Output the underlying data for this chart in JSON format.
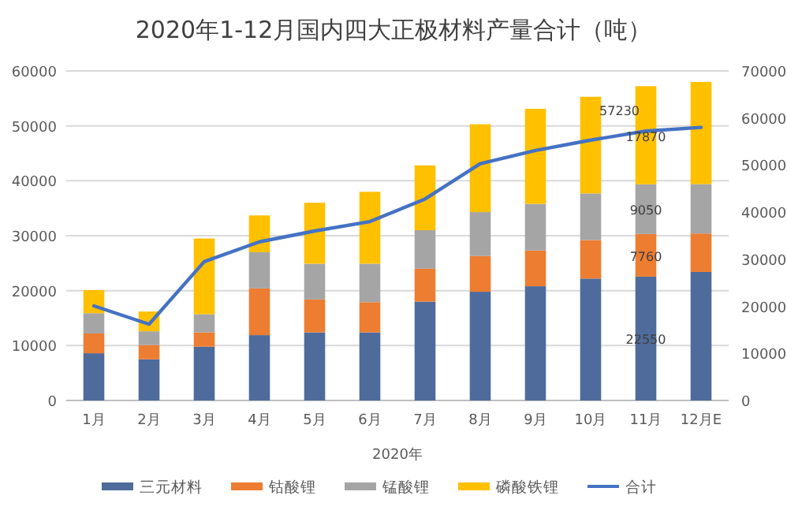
{
  "chart_data": {
    "type": "bar",
    "stacked": true,
    "title": "2020年1-12月国内四大正极材料产量合计（吨）",
    "xlabel": "2020年",
    "categories": [
      "1月",
      "2月",
      "3月",
      "4月",
      "5月",
      "6月",
      "7月",
      "8月",
      "9月",
      "10月",
      "11月",
      "12月E"
    ],
    "series": [
      {
        "name": "三元材料",
        "color": "#4e6b9b",
        "values": [
          8600,
          7500,
          9800,
          11900,
          12400,
          12400,
          18000,
          19800,
          20800,
          22200,
          22550,
          23400
        ],
        "value_labels": [
          null,
          null,
          null,
          null,
          null,
          null,
          null,
          null,
          null,
          null,
          "22550",
          null
        ]
      },
      {
        "name": "钴酸锂",
        "color": "#ed7d31",
        "values": [
          3600,
          2600,
          2600,
          8500,
          6000,
          5500,
          6000,
          6500,
          6500,
          7000,
          7760,
          7000
        ],
        "value_labels": [
          null,
          null,
          null,
          null,
          null,
          null,
          null,
          null,
          null,
          null,
          "7760",
          null
        ]
      },
      {
        "name": "锰酸锂",
        "color": "#a5a5a5",
        "values": [
          3700,
          2500,
          3300,
          6600,
          6500,
          7000,
          7000,
          8000,
          8500,
          8500,
          9050,
          9000
        ],
        "value_labels": [
          null,
          null,
          null,
          null,
          null,
          null,
          null,
          null,
          null,
          null,
          "9050",
          null
        ]
      },
      {
        "name": "磷酸铁锂",
        "color": "#ffc000",
        "values": [
          4200,
          3600,
          13800,
          6700,
          11100,
          13100,
          11800,
          16000,
          17300,
          17600,
          17870,
          18600
        ],
        "value_labels": [
          null,
          null,
          null,
          null,
          null,
          null,
          null,
          null,
          null,
          null,
          "17870",
          null
        ]
      },
      {
        "name": "合计",
        "type": "line",
        "axis": "y2",
        "color": "#4472c4",
        "values": [
          20100,
          16200,
          29500,
          33700,
          36000,
          38000,
          42800,
          50300,
          53100,
          55300,
          57230,
          58000
        ],
        "value_labels": [
          null,
          null,
          null,
          null,
          null,
          null,
          null,
          null,
          null,
          null,
          "57230",
          null
        ]
      }
    ],
    "ylim": [
      0,
      60000
    ],
    "yticks": [
      0,
      10000,
      20000,
      30000,
      40000,
      50000,
      60000
    ],
    "y2lim": [
      0,
      70000
    ],
    "y2ticks": [
      0,
      10000,
      20000,
      30000,
      40000,
      50000,
      60000,
      70000
    ],
    "grid": "y",
    "legend": "bottom",
    "marker": "none",
    "line_style": "solid"
  }
}
